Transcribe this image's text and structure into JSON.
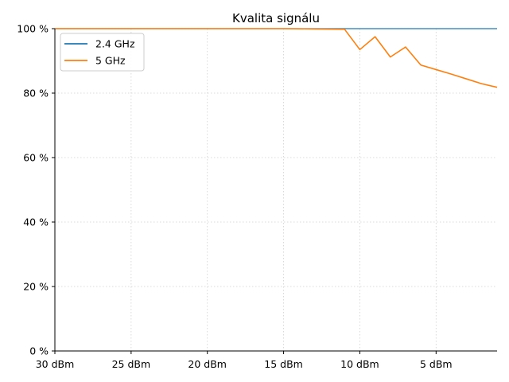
{
  "chart_data": {
    "type": "line",
    "title": "Kvalita signálu",
    "xlabel": "",
    "ylabel": "",
    "x_reversed": true,
    "xlim": [
      30,
      1
    ],
    "ylim": [
      0,
      100
    ],
    "x_ticks": [
      30,
      25,
      20,
      15,
      10,
      5
    ],
    "x_tick_labels": [
      "30 dBm",
      "25 dBm",
      "20 dBm",
      "15 dBm",
      "10 dBm",
      "5 dBm"
    ],
    "y_ticks": [
      0,
      20,
      40,
      60,
      80,
      100
    ],
    "y_tick_labels": [
      "0 %",
      "20 %",
      "40 %",
      "60 %",
      "80 %",
      "100 %"
    ],
    "grid": true,
    "legend_position": "top-left",
    "series": [
      {
        "name": "2.4 GHz",
        "color": "#1f77b4",
        "x": [
          30,
          1
        ],
        "values": [
          100,
          100
        ]
      },
      {
        "name": "5 GHz",
        "color": "#ff7f0e",
        "x": [
          30,
          25,
          20,
          15,
          13,
          11,
          10,
          9,
          8,
          7,
          6,
          5,
          4,
          3,
          2,
          1
        ],
        "values": [
          100,
          100,
          100,
          100,
          99.9,
          99.8,
          93.5,
          97.5,
          91.2,
          94.3,
          88.7,
          87.3,
          85.9,
          84.4,
          82.9,
          81.8
        ]
      }
    ]
  }
}
